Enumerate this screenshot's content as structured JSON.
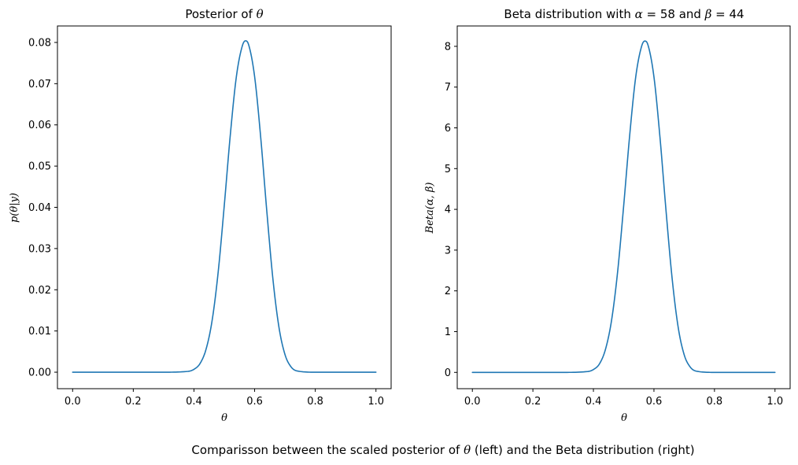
{
  "figure": {
    "caption_pre": "Comparisson between the scaled posterior of ",
    "caption_symbol": "θ",
    "caption_post": " (left) and the Beta distribution (right)"
  },
  "chart_data": [
    {
      "type": "line",
      "title_pre": "Posterior of ",
      "title_symbol": "θ",
      "xlabel": "θ",
      "ylabel": "p(θ|y)",
      "xlim": [
        -0.05,
        1.05
      ],
      "ylim": [
        -0.004,
        0.084
      ],
      "xticks": [
        0.0,
        0.2,
        0.4,
        0.6,
        0.8,
        1.0
      ],
      "xtick_labels": [
        "0.0",
        "0.2",
        "0.4",
        "0.6",
        "0.8",
        "1.0"
      ],
      "yticks": [
        0.0,
        0.01,
        0.02,
        0.03,
        0.04,
        0.05,
        0.06,
        0.07,
        0.08
      ],
      "ytick_labels": [
        "0.00",
        "0.01",
        "0.02",
        "0.03",
        "0.04",
        "0.05",
        "0.06",
        "0.07",
        "0.08"
      ],
      "grid": false,
      "line_color": "#1f77b4",
      "x": [
        0.0,
        0.3,
        0.38,
        0.4,
        0.42,
        0.44,
        0.46,
        0.48,
        0.5,
        0.52,
        0.54,
        0.56,
        0.57,
        0.58,
        0.6,
        0.62,
        0.64,
        0.66,
        0.68,
        0.7,
        0.72,
        0.74,
        0.8,
        1.0
      ],
      "y": [
        0.0,
        0.0,
        0.0002,
        0.0007,
        0.0021,
        0.0056,
        0.0126,
        0.0244,
        0.0405,
        0.0577,
        0.0718,
        0.0793,
        0.0804,
        0.0795,
        0.0717,
        0.057,
        0.0392,
        0.0228,
        0.011,
        0.0043,
        0.0013,
        0.0003,
        0.0,
        0.0
      ]
    },
    {
      "type": "line",
      "title_pre": "Beta distribution with ",
      "title_alpha": "α",
      "title_mid1": " = 58 and ",
      "title_beta": "β",
      "title_mid2": " = 44",
      "xlabel": "θ",
      "ylabel": "Beta(α, β)",
      "xlim": [
        -0.05,
        1.05
      ],
      "ylim": [
        -0.4,
        8.5
      ],
      "xticks": [
        0.0,
        0.2,
        0.4,
        0.6,
        0.8,
        1.0
      ],
      "xtick_labels": [
        "0.0",
        "0.2",
        "0.4",
        "0.6",
        "0.8",
        "1.0"
      ],
      "yticks": [
        0,
        1,
        2,
        3,
        4,
        5,
        6,
        7,
        8
      ],
      "ytick_labels": [
        "0",
        "1",
        "2",
        "3",
        "4",
        "5",
        "6",
        "7",
        "8"
      ],
      "grid": false,
      "line_color": "#1f77b4",
      "x": [
        0.0,
        0.3,
        0.38,
        0.4,
        0.42,
        0.44,
        0.46,
        0.48,
        0.5,
        0.52,
        0.54,
        0.56,
        0.57,
        0.58,
        0.6,
        0.62,
        0.64,
        0.66,
        0.68,
        0.7,
        0.72,
        0.74,
        0.8,
        1.0
      ],
      "y": [
        0.0,
        0.0,
        0.02,
        0.07,
        0.21,
        0.57,
        1.28,
        2.47,
        4.09,
        5.83,
        7.26,
        8.02,
        8.13,
        8.04,
        7.25,
        5.76,
        3.96,
        2.31,
        1.11,
        0.43,
        0.13,
        0.03,
        0.0,
        0.0
      ]
    }
  ]
}
